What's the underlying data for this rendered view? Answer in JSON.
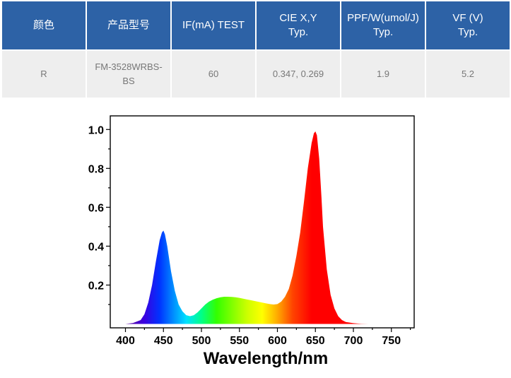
{
  "table": {
    "headers": [
      [
        "颜色"
      ],
      [
        "产品型号"
      ],
      [
        "IF(mA) TEST"
      ],
      [
        "CIE X,Y",
        "Typ."
      ],
      [
        "PPF/W(umol/J)",
        "Typ."
      ],
      [
        "VF (V)",
        "Typ."
      ]
    ],
    "row": [
      [
        "R"
      ],
      [
        "FM-3528WRBS-",
        "BS"
      ],
      [
        "60"
      ],
      [
        "0.347, 0.269"
      ],
      [
        "1.9"
      ],
      [
        "5.2"
      ]
    ]
  },
  "chart_data": {
    "type": "area",
    "title": "",
    "xlabel": "Wavelength/nm",
    "ylabel": "",
    "xlim": [
      380,
      780
    ],
    "ylim": [
      -0.02,
      1.07
    ],
    "xticks": [
      400,
      450,
      500,
      550,
      600,
      650,
      700,
      750
    ],
    "yticks": [
      0.2,
      0.4,
      0.6,
      0.8,
      1.0
    ],
    "ytick_labels": [
      "0.2",
      "0.4",
      "0.6",
      "0.8",
      "1.0"
    ],
    "grid": false,
    "fill": "spectral rainbow gradient (violet to red)",
    "series": [
      {
        "x": [
          400,
          410,
          420,
          425,
          430,
          435,
          440,
          445,
          448,
          450,
          452,
          455,
          460,
          465,
          470,
          475,
          480,
          485,
          490,
          495,
          500,
          505,
          510,
          515,
          520,
          525,
          530,
          535,
          540,
          545,
          550,
          555,
          560,
          565,
          570,
          575,
          580,
          585,
          590,
          595,
          600,
          605,
          610,
          615,
          620,
          625,
          630,
          635,
          640,
          645,
          648,
          650,
          652,
          655,
          658,
          660,
          665,
          670,
          675,
          680,
          685,
          690,
          700,
          710,
          720,
          730,
          740,
          750
        ],
        "values": [
          0.0,
          0.005,
          0.02,
          0.05,
          0.11,
          0.2,
          0.32,
          0.43,
          0.47,
          0.48,
          0.46,
          0.4,
          0.27,
          0.17,
          0.1,
          0.065,
          0.045,
          0.04,
          0.045,
          0.06,
          0.08,
          0.1,
          0.115,
          0.125,
          0.132,
          0.137,
          0.14,
          0.14,
          0.139,
          0.137,
          0.134,
          0.13,
          0.126,
          0.122,
          0.118,
          0.114,
          0.11,
          0.106,
          0.102,
          0.1,
          0.102,
          0.115,
          0.14,
          0.18,
          0.25,
          0.35,
          0.47,
          0.63,
          0.8,
          0.93,
          0.98,
          0.99,
          0.97,
          0.85,
          0.65,
          0.5,
          0.28,
          0.15,
          0.08,
          0.04,
          0.02,
          0.01,
          0.004,
          0.001,
          0.0,
          0.0,
          0.0,
          0.0
        ]
      }
    ]
  }
}
